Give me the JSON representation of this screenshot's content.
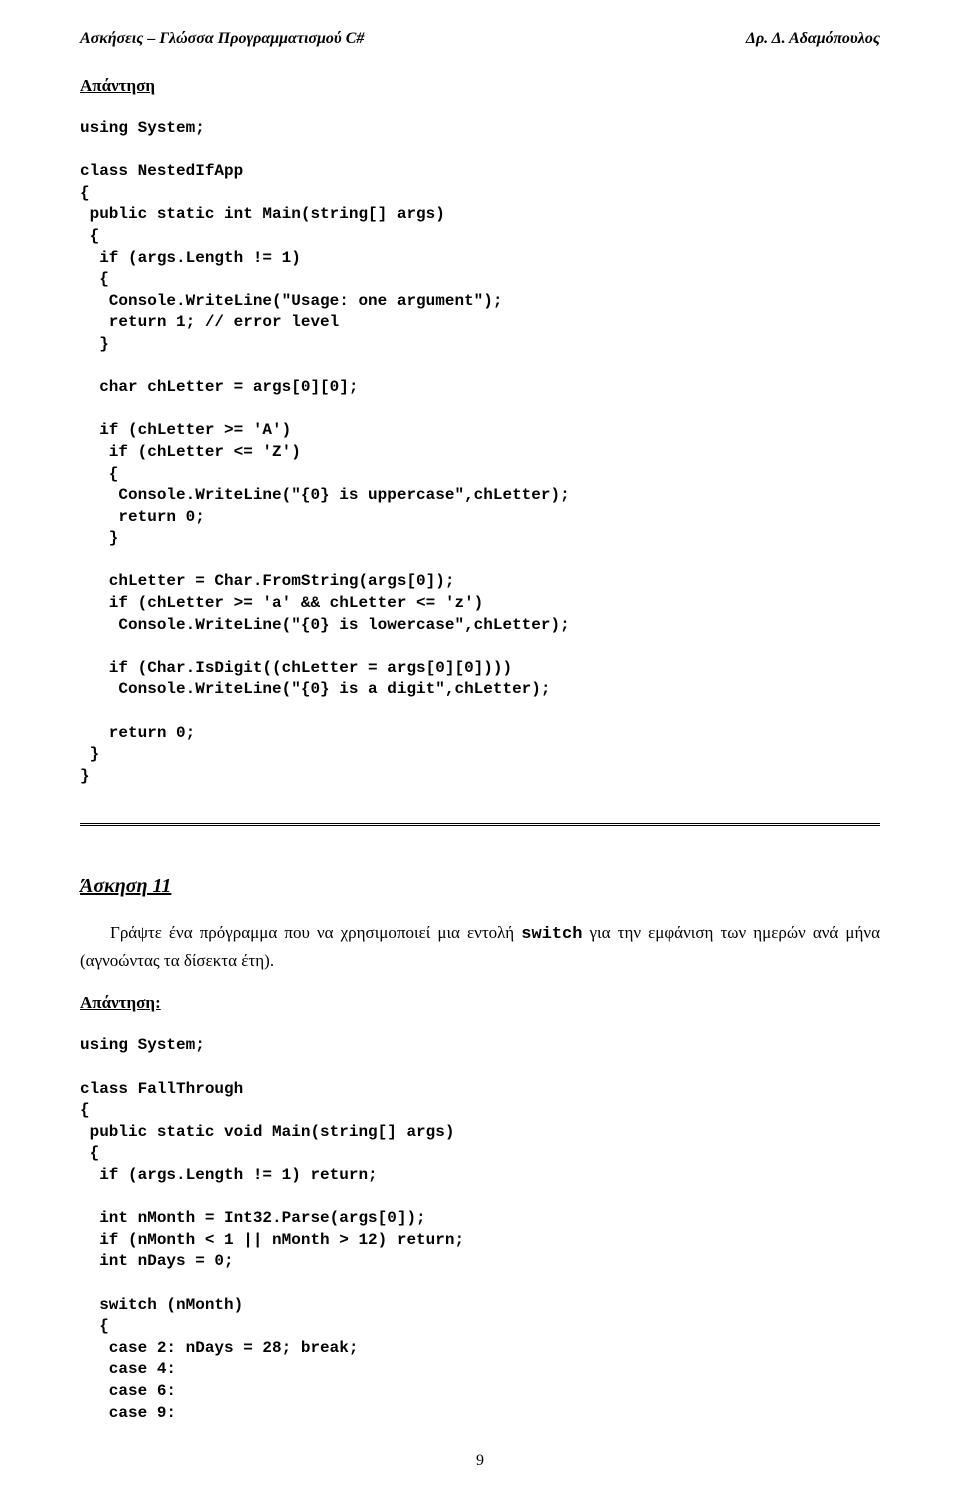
{
  "header": {
    "left": "Ασκήσεις – Γλώσσα Προγραμματισμού C#",
    "right": "Δρ. Δ. Αδαμόπουλος"
  },
  "section1": {
    "title": "Απάντηση",
    "code": "using System;\n\nclass NestedIfApp\n{\n public static int Main(string[] args)\n {\n  if (args.Length != 1)\n  {\n   Console.WriteLine(\"Usage: one argument\");\n   return 1; // error level\n  }\n\n  char chLetter = args[0][0];\n\n  if (chLetter >= 'A')\n   if (chLetter <= 'Z')\n   {\n    Console.WriteLine(\"{0} is uppercase\",chLetter);\n    return 0;\n   }\n\n   chLetter = Char.FromString(args[0]);\n   if (chLetter >= 'a' && chLetter <= 'z')\n    Console.WriteLine(\"{0} is lowercase\",chLetter);\n\n   if (Char.IsDigit((chLetter = args[0][0])))\n    Console.WriteLine(\"{0} is a digit\",chLetter);\n\n   return 0;\n }\n}"
  },
  "exercise": {
    "title": "Άσκηση 11",
    "paragraph_before": "Γράψτε ένα πρόγραμμα που να χρησιμοποιεί μια εντολή ",
    "paragraph_mono": "switch",
    "paragraph_after": " για την εμφάνιση των ημερών ανά μήνα (αγνοώντας τα δίσεκτα έτη)."
  },
  "section2": {
    "title": "Απάντηση:",
    "code": "using System;\n\nclass FallThrough\n{\n public static void Main(string[] args)\n {\n  if (args.Length != 1) return;\n\n  int nMonth = Int32.Parse(args[0]);\n  if (nMonth < 1 || nMonth > 12) return;\n  int nDays = 0;\n\n  switch (nMonth)\n  {\n   case 2: nDays = 28; break;\n   case 4:\n   case 6:\n   case 9:"
  },
  "page_number": "9"
}
